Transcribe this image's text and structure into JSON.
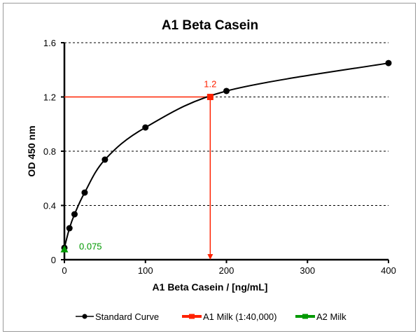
{
  "chart_data": {
    "type": "line",
    "title": "A1 Beta Casein",
    "xlabel": "A1 Beta Casein / [ng/mL]",
    "ylabel": "OD 450 nm",
    "xlim": [
      0,
      400
    ],
    "ylim": [
      0,
      1.6
    ],
    "xticks": [
      "0",
      "100",
      "200",
      "300",
      "400"
    ],
    "yticks": [
      "0",
      "0.4",
      "0.8",
      "1.2",
      "1.6"
    ],
    "grid": "horizontal dashed",
    "legend_position": "bottom",
    "series": [
      {
        "name": "Standard Curve",
        "color": "#000000",
        "marker": "circle",
        "x": [
          0,
          6.25,
          12.5,
          25,
          50,
          100,
          200,
          400
        ],
        "y": [
          0.088,
          0.232,
          0.335,
          0.495,
          0.738,
          0.975,
          1.244,
          1.45
        ]
      },
      {
        "name": "A1 Milk (1:40,000)",
        "color": "#ff2200",
        "marker": "square",
        "x": [
          180
        ],
        "y": [
          1.2
        ],
        "label": "1.2"
      },
      {
        "name": "A2 Milk",
        "color": "#009900",
        "marker": "triangle",
        "x": [
          0
        ],
        "y": [
          0.075
        ],
        "label": "0.075"
      }
    ]
  }
}
